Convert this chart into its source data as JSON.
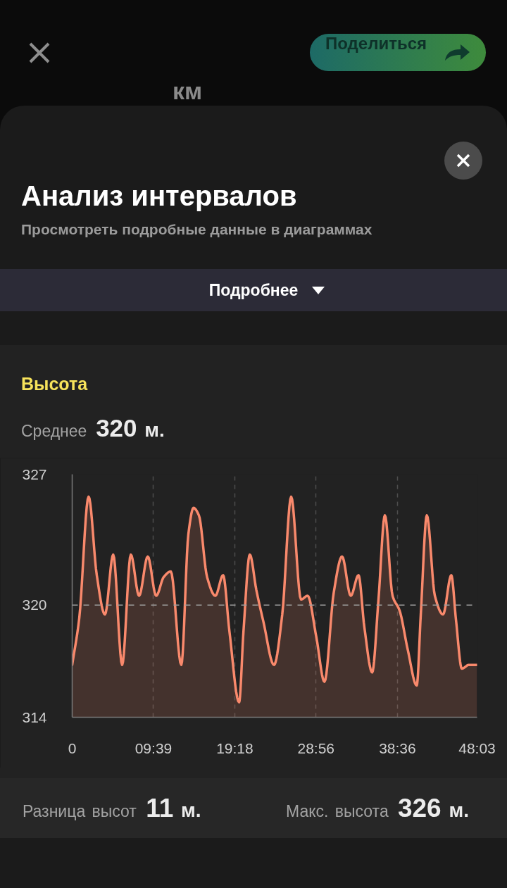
{
  "chart_data": {
    "type": "area",
    "title": "Высота",
    "subtitle": "Среднее 320 м.",
    "annotations": [
      "Поделиться",
      "км",
      "Анализ интервалов",
      "Просмотреть подробные данные в диаграммах",
      "Подробнее",
      "Разница высот 11 м.",
      "Макс. высота 326 м."
    ],
    "x": [
      0,
      0.84,
      1.95,
      2.92,
      3.89,
      4.87,
      5.93,
      6.96,
      7.94,
      8.97,
      9.97,
      10.86,
      11.7,
      12.95,
      13.79,
      14.4,
      15.04,
      16.01,
      16.99,
      17.91,
      18.66,
      19.81,
      20.33,
      21.08,
      21.86,
      22.7,
      23.95,
      24.93,
      25.99,
      27.16,
      27.94,
      28.97,
      29.94,
      31.05,
      32.03,
      33.06,
      33.98,
      34.68,
      35.6,
      36.35,
      37.11,
      38.02,
      38.86,
      39.83,
      40.89,
      41.37,
      42.09,
      43.04,
      44.01,
      44.99,
      45.55,
      46.24,
      47.08,
      48.05
    ],
    "values": [
      316.8,
      319.3,
      325.8,
      321.6,
      319.5,
      322.7,
      316.8,
      322.7,
      320.5,
      322.6,
      320.5,
      321.5,
      321.8,
      316.8,
      323.8,
      325.2,
      324.8,
      321.5,
      320.5,
      321.6,
      318.6,
      314.8,
      318.6,
      322.7,
      320.8,
      319.1,
      316.8,
      319.5,
      325.8,
      320.3,
      320.5,
      318.3,
      315.9,
      320.7,
      322.6,
      320.5,
      321.6,
      318.8,
      316.4,
      320.3,
      324.8,
      320.5,
      319.7,
      317.6,
      315.7,
      319.5,
      324.8,
      320.5,
      319.5,
      321.6,
      319.2,
      316.6,
      316.8,
      316.8
    ],
    "color": "#f9896c",
    "xlim": [
      0,
      48.05
    ],
    "xticks": [
      0,
      {
        "value": 9.65,
        "label": "09:39"
      },
      {
        "value": 19.3,
        "label": "19:18"
      },
      {
        "value": 28.933,
        "label": "28:56"
      },
      {
        "value": 38.6,
        "label": "38:36"
      },
      {
        "value": 48.05,
        "label": "48:03"
      }
    ],
    "ylim": [
      314,
      327
    ],
    "yticks": [
      314,
      320,
      327
    ],
    "ref_lines": [
      {
        "axis": "y",
        "value": 320,
        "color": "#9e9e9e",
        "line_style": "dashed"
      }
    ],
    "grid": "x"
  }
}
